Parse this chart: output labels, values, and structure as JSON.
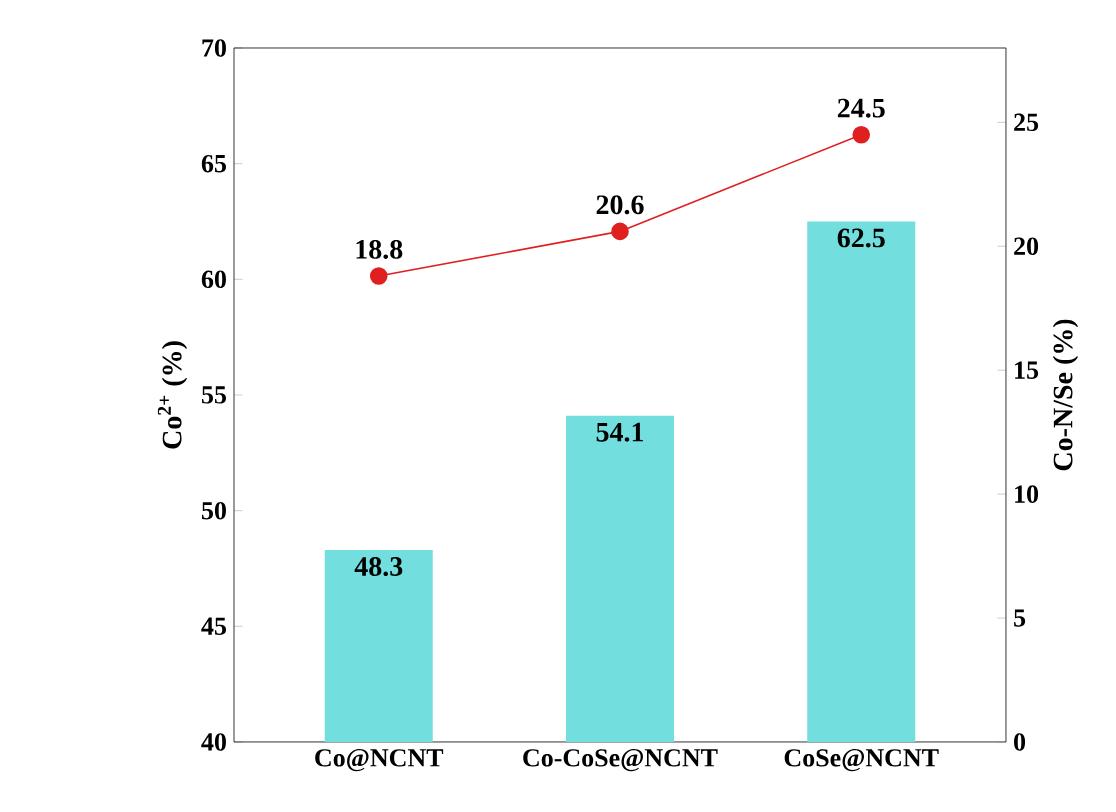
{
  "chart_data": {
    "type": "bar",
    "categories": [
      "Co@NCNT",
      "Co-CoSe@NCNT",
      "CoSe@NCNT"
    ],
    "ylabel": "Co$^{2+}$ (%)",
    "y2label": "Co-N/Se (%)",
    "ylim": [
      40,
      70
    ],
    "yticks": [
      40,
      45,
      50,
      55,
      60,
      65,
      70
    ],
    "y2lim": [
      0,
      28
    ],
    "y2ticks": [
      0,
      5,
      10,
      15,
      20,
      25
    ],
    "series": [
      {
        "color": "#72dede",
        "values": [
          48.3,
          54.1,
          62.5
        ]
      },
      {
        "type": "line",
        "axis": "y2",
        "color": "#e02020",
        "values": [
          18.8,
          20.6,
          24.5
        ]
      }
    ],
    "marker": "circle",
    "line_style": "solid",
    "data_labels": true,
    "legend": false,
    "grid": false
  }
}
